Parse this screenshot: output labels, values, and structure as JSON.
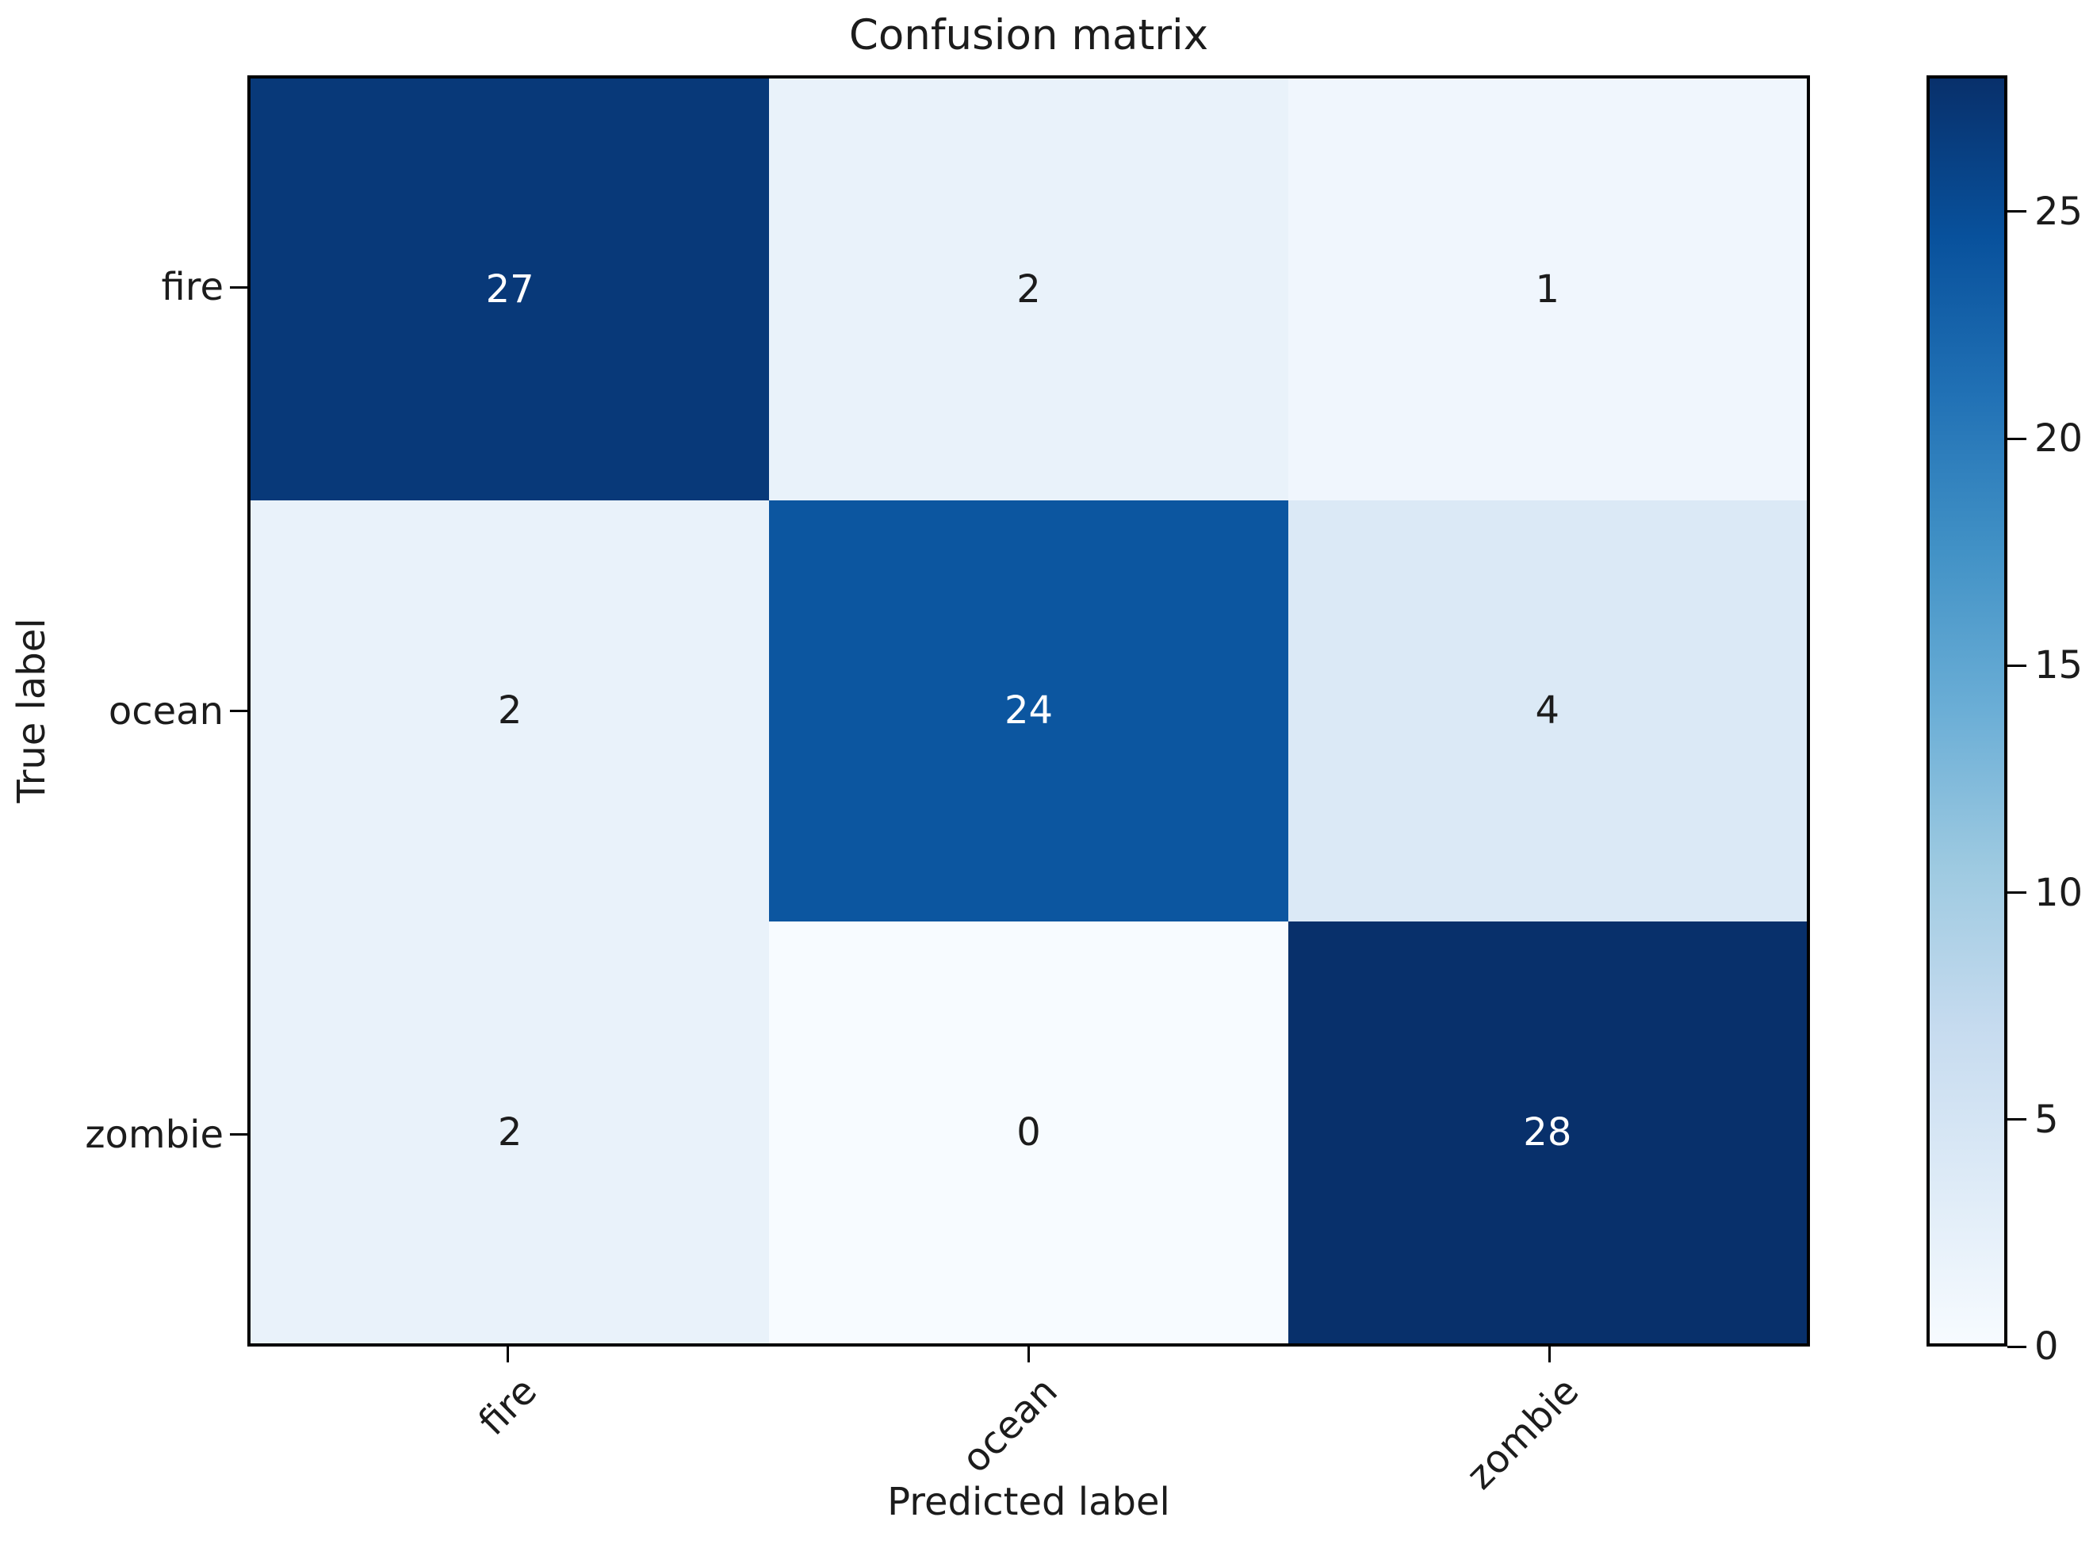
{
  "title": "Confusion matrix",
  "axes": {
    "xlabel": "Predicted label",
    "ylabel": "True label"
  },
  "chart_data": {
    "type": "heatmap",
    "title": "Confusion matrix",
    "xlabel": "Predicted label",
    "ylabel": "True label",
    "x_categories": [
      "fire",
      "ocean",
      "zombie"
    ],
    "y_categories": [
      "fire",
      "ocean",
      "zombie"
    ],
    "values": [
      [
        27,
        2,
        1
      ],
      [
        2,
        24,
        4
      ],
      [
        2,
        0,
        28
      ]
    ],
    "colormap": "Blues",
    "vmin": 0,
    "vmax": 28,
    "colorbar_ticks": [
      0,
      5,
      10,
      15,
      20,
      25
    ],
    "colorbar_position": "right",
    "x_tick_rotation_deg": 45,
    "grid": false
  },
  "style": {
    "cell_colors": [
      [
        "#083979",
        "#e9f2fa",
        "#f0f6fd"
      ],
      [
        "#e9f2fa",
        "#0c56a0",
        "#dbe9f6"
      ],
      [
        "#e9f2fa",
        "#f7fbff",
        "#08306b"
      ]
    ],
    "cell_text_colors": [
      [
        "#ffffff",
        "#1c1c1c",
        "#1c1c1c"
      ],
      [
        "#1c1c1c",
        "#ffffff",
        "#1c1c1c"
      ],
      [
        "#1c1c1c",
        "#1c1c1c",
        "#ffffff"
      ]
    ],
    "colorbar_gradient": [
      "#f7fbff",
      "#deebf7",
      "#c6dbef",
      "#9ecae1",
      "#6baed6",
      "#4292c6",
      "#2171b5",
      "#08519c",
      "#08306b"
    ],
    "spine_color": "#000000",
    "text_color": "#1c1c1c",
    "background": "#ffffff"
  }
}
